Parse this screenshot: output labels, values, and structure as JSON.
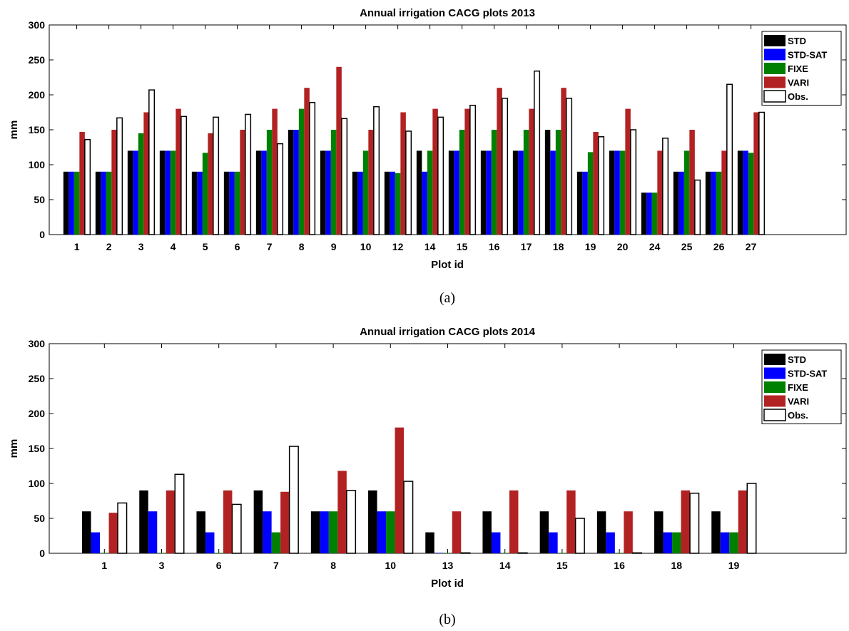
{
  "colors": {
    "STD": "#000000",
    "STD-SAT": "#0000ff",
    "FIXE": "#008000",
    "VARI": "#b22222",
    "Obs.": "#ffffff"
  },
  "chart_data": [
    {
      "type": "bar",
      "title": "Annual irrigation CACG plots 2013",
      "xlabel": "Plot id",
      "ylabel": "mm",
      "caption": "(a)",
      "ylim": [
        0,
        300
      ],
      "yticks": [
        0,
        50,
        100,
        150,
        200,
        250,
        300
      ],
      "legend_position": "top-right",
      "categories": [
        "1",
        "2",
        "3",
        "4",
        "5",
        "6",
        "7",
        "8",
        "9",
        "10",
        "12",
        "14",
        "15",
        "16",
        "17",
        "18",
        "19",
        "20",
        "24",
        "25",
        "26",
        "27"
      ],
      "series": [
        {
          "name": "STD",
          "values": [
            90,
            90,
            120,
            120,
            90,
            90,
            120,
            150,
            120,
            90,
            90,
            120,
            120,
            120,
            120,
            150,
            90,
            120,
            60,
            90,
            90,
            120
          ]
        },
        {
          "name": "STD-SAT",
          "values": [
            90,
            90,
            120,
            120,
            90,
            90,
            120,
            150,
            120,
            90,
            90,
            90,
            120,
            120,
            120,
            120,
            90,
            120,
            60,
            90,
            90,
            120
          ]
        },
        {
          "name": "FIXE",
          "values": [
            90,
            90,
            145,
            120,
            117,
            90,
            150,
            180,
            150,
            120,
            88,
            120,
            150,
            150,
            150,
            150,
            118,
            120,
            60,
            120,
            90,
            117
          ]
        },
        {
          "name": "VARI",
          "values": [
            147,
            150,
            175,
            180,
            145,
            150,
            180,
            210,
            240,
            150,
            175,
            180,
            180,
            210,
            180,
            210,
            147,
            180,
            120,
            150,
            120,
            175
          ]
        },
        {
          "name": "Obs.",
          "values": [
            136,
            167,
            207,
            169,
            168,
            172,
            130,
            189,
            166,
            183,
            148,
            168,
            185,
            195,
            234,
            195,
            140,
            150,
            138,
            78,
            215,
            175
          ]
        }
      ]
    },
    {
      "type": "bar",
      "title": "Annual irrigation CACG plots 2014",
      "xlabel": "Plot id",
      "ylabel": "mm",
      "caption": "(b)",
      "ylim": [
        0,
        300
      ],
      "yticks": [
        0,
        50,
        100,
        150,
        200,
        250,
        300
      ],
      "legend_position": "top-right",
      "categories": [
        "1",
        "3",
        "6",
        "7",
        "8",
        "10",
        "13",
        "14",
        "15",
        "16",
        "18",
        "19"
      ],
      "series": [
        {
          "name": "STD",
          "values": [
            60,
            90,
            60,
            90,
            60,
            90,
            30,
            60,
            60,
            60,
            60,
            60
          ]
        },
        {
          "name": "STD-SAT",
          "values": [
            30,
            60,
            30,
            60,
            60,
            60,
            0,
            30,
            30,
            30,
            30,
            30
          ]
        },
        {
          "name": "FIXE",
          "values": [
            0,
            0,
            0,
            30,
            60,
            60,
            0,
            0,
            0,
            0,
            30,
            30
          ]
        },
        {
          "name": "VARI",
          "values": [
            58,
            90,
            90,
            88,
            118,
            180,
            60,
            90,
            90,
            60,
            90,
            90
          ]
        },
        {
          "name": "Obs.",
          "values": [
            72,
            113,
            70,
            153,
            90,
            103,
            0,
            0,
            50,
            0,
            86,
            100
          ]
        }
      ]
    }
  ]
}
